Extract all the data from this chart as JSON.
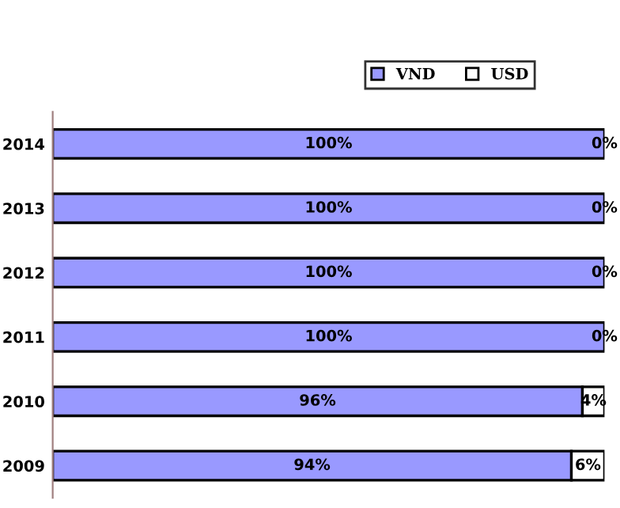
{
  "chart_data": {
    "type": "bar",
    "orientation": "horizontal",
    "stacked": true,
    "categories": [
      "2014",
      "2013",
      "2012",
      "2011",
      "2010",
      "2009"
    ],
    "series": [
      {
        "name": "VND",
        "color": "#9999ff",
        "values": [
          100,
          100,
          100,
          100,
          96,
          94
        ],
        "value_labels": [
          "100%",
          "100%",
          "100%",
          "100%",
          "96%",
          "94%"
        ]
      },
      {
        "name": "USD",
        "color": "#ffffff",
        "values": [
          0,
          0,
          0,
          0,
          4,
          6
        ],
        "value_labels": [
          "0%",
          "0%",
          "0%",
          "0%",
          "4%",
          "6%"
        ]
      }
    ],
    "legend": "top",
    "grid": false
  }
}
